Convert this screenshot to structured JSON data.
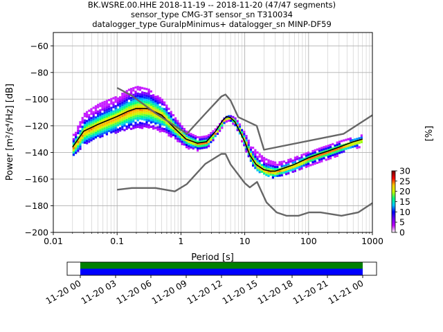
{
  "title_lines": [
    "BK.WSRE.00.HHE   2018-11-19 -- 2018-11-20  (47/47 segments)",
    "sensor_type CMG-3T sensor_sn T310034",
    "datalogger_type GuralpMinimus+ datalogger_sn MINP-DF59"
  ],
  "chart_data": {
    "type": "heatmap",
    "xlabel": "Period [s]",
    "ylabel": "Power [m²/s⁴/Hz] [dB]",
    "xscale": "log",
    "xlim": [
      0.01,
      1000
    ],
    "ylim": [
      -200,
      -50
    ],
    "xticks": [
      0.01,
      0.1,
      1,
      10,
      100,
      1000
    ],
    "xtick_labels": [
      "0.01",
      "0.1",
      "1",
      "10",
      "100",
      "1000"
    ],
    "yticks": [
      -200,
      -180,
      -160,
      -140,
      -120,
      -100,
      -80,
      -60
    ],
    "ytick_labels": [
      "−200",
      "−180",
      "−160",
      "−140",
      "−120",
      "−100",
      "−80",
      "−60"
    ],
    "grid": true,
    "colorbar": {
      "label": "[%]",
      "min": 0,
      "max": 30,
      "ticks": [
        0,
        5,
        10,
        15,
        20,
        25,
        30
      ],
      "tick_labels": [
        "0",
        "5",
        "10",
        "15",
        "20",
        "25",
        "30"
      ],
      "colors": [
        "#ffffff",
        "#c000ff",
        "#7000ff",
        "#0000ff",
        "#00c8ff",
        "#00ff80",
        "#c8ff00",
        "#ffc800",
        "#ff0000",
        "#800000"
      ]
    },
    "series": [
      {
        "name": "",
        "role": "mean",
        "color": "#000000",
        "x": [
          0.02,
          0.03,
          0.05,
          0.1,
          0.15,
          0.2,
          0.3,
          0.5,
          0.8,
          1.2,
          1.8,
          2.5,
          3.5,
          4.5,
          5.2,
          6,
          7,
          8.5,
          10,
          12,
          15,
          20,
          25,
          30,
          40,
          60,
          100,
          150,
          200,
          300,
          500,
          700
        ],
        "y": [
          -136,
          -124,
          -119,
          -113,
          -109,
          -107,
          -107,
          -112,
          -122,
          -130,
          -133,
          -132,
          -124,
          -116,
          -113,
          -114,
          -117,
          -125,
          -132,
          -142,
          -149,
          -153,
          -154,
          -154,
          -152,
          -149,
          -144,
          -141,
          -139,
          -136,
          -132,
          -130
        ]
      },
      {
        "name": "",
        "role": "noise-model-high",
        "color": "#666666",
        "x": [
          0.1,
          0.17,
          0.4,
          0.8,
          1.24,
          2.4,
          4.3,
          5,
          6,
          7.9,
          15.4,
          20,
          354.8,
          1000
        ],
        "y": [
          -91.5,
          -97.4,
          -110.5,
          -120,
          -126,
          -111,
          -98,
          -96.5,
          -101,
          -113.5,
          -120,
          -138,
          -126,
          -112
        ]
      },
      {
        "name": "",
        "role": "noise-model-low",
        "color": "#666666",
        "x": [
          0.1,
          0.17,
          0.4,
          0.8,
          1.24,
          2.4,
          4.3,
          5,
          6,
          10,
          12,
          15.6,
          21.9,
          31.6,
          45,
          70,
          101,
          154,
          328,
          600,
          1000
        ],
        "y": [
          -168,
          -166.7,
          -166.7,
          -169.2,
          -163.7,
          -148.6,
          -141.1,
          -141.1,
          -149,
          -163,
          -166.2,
          -162.1,
          -177.5,
          -185,
          -187.5,
          -187.5,
          -185,
          -185,
          -187.5,
          -185,
          -178
        ]
      }
    ],
    "density_band": {
      "x": [
        0.02,
        0.03,
        0.05,
        0.1,
        0.15,
        0.2,
        0.3,
        0.5,
        0.8,
        1.2,
        1.8,
        2.5,
        3.5,
        4.5,
        5.2,
        6,
        7,
        8.5,
        10,
        12,
        15,
        20,
        25,
        30,
        40,
        60,
        100,
        150,
        200,
        300,
        500,
        700
      ],
      "upper": [
        -126,
        -110,
        -103,
        -97,
        -92,
        -90,
        -92,
        -100,
        -114,
        -124,
        -128,
        -127,
        -121,
        -114,
        -112,
        -112,
        -114,
        -120,
        -126,
        -134,
        -139,
        -144,
        -146,
        -147,
        -146,
        -143,
        -139,
        -136,
        -134,
        -131,
        -128,
        -126
      ],
      "lower": [
        -142,
        -133,
        -128,
        -124,
        -122,
        -121,
        -121,
        -124,
        -130,
        -136,
        -138,
        -136,
        -127,
        -119,
        -116,
        -117,
        -121,
        -130,
        -138,
        -147,
        -153,
        -157,
        -159,
        -158,
        -156,
        -153,
        -149,
        -146,
        -144,
        -141,
        -137,
        -134
      ]
    },
    "time_panel": {
      "xticks": [
        "11-20 00",
        "11-20 03",
        "11-20 06",
        "11-20 09",
        "11-20 12",
        "11-20 15",
        "11-20 18",
        "11-20 21",
        "11-21 00"
      ],
      "bars": [
        {
          "color": "#008000",
          "start_h": 0,
          "end_h": 24
        },
        {
          "color": "#0000ff",
          "start_h": 0,
          "end_h": 24
        }
      ]
    }
  }
}
